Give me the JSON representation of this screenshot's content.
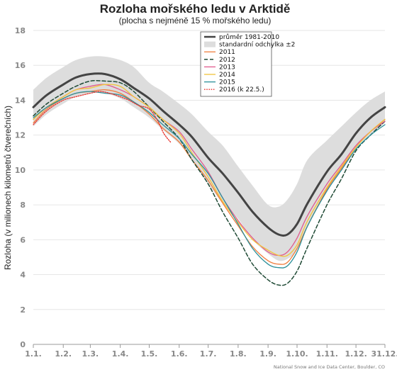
{
  "chart_data": {
    "type": "line",
    "title": "Rozloha mořského ledu v Arktidě",
    "subtitle": "(plocha s nejméně 15 % mořského ledu)",
    "ylabel": "Rozloha (v milionech kilometrů čtverečních)",
    "xlabel": "",
    "ylim": [
      0,
      18
    ],
    "yticks": [
      0,
      2,
      4,
      6,
      8,
      10,
      12,
      14,
      16,
      18
    ],
    "xlim": [
      1,
      365
    ],
    "xticks": [
      {
        "day": 1,
        "label": "1.1."
      },
      {
        "day": 32,
        "label": "1.2."
      },
      {
        "day": 60,
        "label": "1.3."
      },
      {
        "day": 91,
        "label": "1.4."
      },
      {
        "day": 121,
        "label": "1.5."
      },
      {
        "day": 152,
        "label": "1.6."
      },
      {
        "day": 182,
        "label": "1.7."
      },
      {
        "day": 213,
        "label": "1.8."
      },
      {
        "day": 244,
        "label": "1.9."
      },
      {
        "day": 274,
        "label": "1.10."
      },
      {
        "day": 305,
        "label": "1.11."
      },
      {
        "day": 335,
        "label": "1.12."
      },
      {
        "day": 365,
        "label": "31.12."
      }
    ],
    "grid": "horizontal",
    "legend_position": "top-right",
    "band": {
      "name": "standardní odchylka ±2",
      "color": "#dddddd",
      "x": [
        1,
        15,
        32,
        45,
        60,
        75,
        91,
        105,
        121,
        135,
        152,
        165,
        182,
        197,
        213,
        228,
        244,
        255,
        264,
        274,
        285,
        305,
        320,
        335,
        350,
        365
      ],
      "upper": [
        14.6,
        15.3,
        15.9,
        16.3,
        16.5,
        16.5,
        16.3,
        15.9,
        15.0,
        14.5,
        13.8,
        13.2,
        12.2,
        11.4,
        10.2,
        9.1,
        8.0,
        7.9,
        8.3,
        9.2,
        10.6,
        11.7,
        12.5,
        13.3,
        14.0,
        14.5
      ],
      "lower": [
        12.5,
        13.2,
        13.8,
        14.2,
        14.4,
        14.4,
        14.1,
        13.6,
        13.0,
        12.3,
        11.5,
        10.6,
        9.2,
        8.1,
        7.2,
        6.0,
        5.2,
        4.8,
        4.9,
        5.4,
        6.8,
        8.9,
        10.0,
        11.3,
        12.0,
        12.7
      ]
    },
    "series": [
      {
        "name": "průměr 1981-2010",
        "color": "#444444",
        "width": 3,
        "dash": "",
        "x": [
          1,
          15,
          32,
          45,
          60,
          75,
          91,
          105,
          121,
          135,
          152,
          165,
          182,
          197,
          213,
          228,
          244,
          255,
          264,
          274,
          285,
          305,
          320,
          335,
          350,
          365
        ],
        "y": [
          13.6,
          14.3,
          14.9,
          15.3,
          15.5,
          15.5,
          15.2,
          14.7,
          14.1,
          13.4,
          12.6,
          11.9,
          10.7,
          9.8,
          8.7,
          7.6,
          6.7,
          6.3,
          6.3,
          6.9,
          8.1,
          9.9,
          10.9,
          12.1,
          13.0,
          13.6
        ]
      },
      {
        "name": "2011",
        "color": "#f07e3e",
        "width": 1.3,
        "dash": "",
        "x": [
          1,
          15,
          32,
          45,
          60,
          75,
          91,
          105,
          121,
          135,
          152,
          165,
          182,
          197,
          213,
          228,
          244,
          255,
          264,
          274,
          285,
          305,
          320,
          335,
          350,
          365
        ],
        "y": [
          12.7,
          13.5,
          14.1,
          14.4,
          14.5,
          14.6,
          14.4,
          13.9,
          13.2,
          12.4,
          11.6,
          10.6,
          9.4,
          8.1,
          6.8,
          5.6,
          4.8,
          4.6,
          4.7,
          5.5,
          6.8,
          8.9,
          10.1,
          11.3,
          12.2,
          12.9
        ]
      },
      {
        "name": "2012",
        "color": "#1f4a35",
        "width": 1.5,
        "dash": "5,3",
        "x": [
          1,
          15,
          32,
          45,
          60,
          75,
          91,
          105,
          121,
          135,
          152,
          165,
          182,
          197,
          213,
          228,
          244,
          255,
          264,
          274,
          285,
          305,
          320,
          335,
          350,
          365
        ],
        "y": [
          13.1,
          13.8,
          14.4,
          14.8,
          15.1,
          15.1,
          15.0,
          14.5,
          13.6,
          12.8,
          11.8,
          10.6,
          9.2,
          7.6,
          6.1,
          4.6,
          3.7,
          3.4,
          3.5,
          4.2,
          5.6,
          8.0,
          9.5,
          11.1,
          12.0,
          12.8
        ]
      },
      {
        "name": "2013",
        "color": "#e05a8e",
        "width": 1.3,
        "dash": "",
        "x": [
          1,
          15,
          32,
          45,
          60,
          75,
          91,
          105,
          121,
          135,
          152,
          165,
          182,
          197,
          213,
          228,
          244,
          255,
          264,
          274,
          285,
          305,
          320,
          335,
          350,
          365
        ],
        "y": [
          12.9,
          13.6,
          14.2,
          14.6,
          14.8,
          14.9,
          14.6,
          14.2,
          13.6,
          12.9,
          12.2,
          11.2,
          9.9,
          8.4,
          7.1,
          6.1,
          5.3,
          5.1,
          5.3,
          6.1,
          7.4,
          9.2,
          10.3,
          11.4,
          12.2,
          12.8
        ]
      },
      {
        "name": "2014",
        "color": "#f2c43a",
        "width": 1.3,
        "dash": "",
        "x": [
          1,
          15,
          32,
          45,
          60,
          75,
          91,
          105,
          121,
          135,
          152,
          165,
          182,
          197,
          213,
          228,
          244,
          255,
          264,
          274,
          285,
          305,
          320,
          335,
          350,
          365
        ],
        "y": [
          12.9,
          13.6,
          14.2,
          14.6,
          14.7,
          14.9,
          14.8,
          14.2,
          13.6,
          12.9,
          12.1,
          11.0,
          9.6,
          8.2,
          7.0,
          6.0,
          5.4,
          5.1,
          5.1,
          5.7,
          7.1,
          9.0,
          10.2,
          11.3,
          12.2,
          12.9
        ]
      },
      {
        "name": "2015",
        "color": "#2b8f99",
        "width": 1.3,
        "dash": "",
        "x": [
          1,
          15,
          32,
          45,
          60,
          75,
          91,
          105,
          121,
          135,
          152,
          165,
          182,
          197,
          213,
          228,
          244,
          255,
          264,
          274,
          285,
          305,
          320,
          335,
          350,
          365
        ],
        "y": [
          13.0,
          13.6,
          14.1,
          14.4,
          14.5,
          14.4,
          14.3,
          13.9,
          13.3,
          12.6,
          11.8,
          10.9,
          9.8,
          8.4,
          6.9,
          5.5,
          4.6,
          4.4,
          4.5,
          5.3,
          6.8,
          8.8,
          10.0,
          11.2,
          12.0,
          12.6
        ]
      },
      {
        "name": "2016 (k 22.5.)",
        "color": "#e8332d",
        "width": 1.3,
        "dash": "1.6,1.6",
        "x": [
          1,
          15,
          32,
          45,
          60,
          70,
          80,
          91,
          100,
          110,
          121,
          130,
          136,
          143
        ],
        "y": [
          12.6,
          13.4,
          14.0,
          14.2,
          14.4,
          14.5,
          14.4,
          14.2,
          14.0,
          13.7,
          13.5,
          12.8,
          12.1,
          11.6
        ]
      }
    ],
    "credit": "National Snow and Ice Data Center, Boulder, CO"
  }
}
